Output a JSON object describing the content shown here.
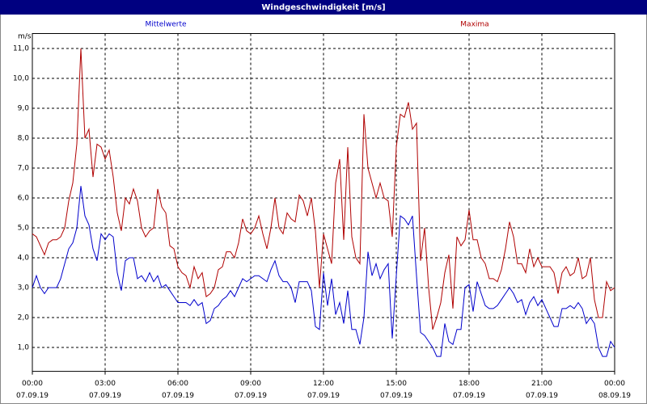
{
  "chart_data": {
    "type": "line",
    "title": "Windgeschwindigkeit [m/s]",
    "y_label": "m/s",
    "x": [
      0,
      10,
      20,
      30,
      40,
      50,
      60,
      70,
      80,
      90,
      100,
      110,
      120,
      130,
      140,
      150,
      160,
      170,
      180,
      190,
      200,
      210,
      220,
      230,
      240,
      250,
      260,
      270,
      280,
      290,
      300,
      310,
      320,
      330,
      340,
      350,
      360,
      370,
      380,
      390,
      400,
      410,
      420,
      430,
      440,
      450,
      460,
      470,
      480,
      490,
      500,
      510,
      520,
      530,
      540,
      550,
      560,
      570,
      580,
      590,
      600,
      610,
      620,
      630,
      640,
      650,
      660,
      670,
      680,
      690,
      700,
      710,
      720,
      730,
      740,
      750,
      760,
      770,
      780,
      790,
      800,
      810,
      820,
      830,
      840,
      850,
      860,
      870,
      880,
      890,
      900,
      910,
      920,
      930,
      940,
      950,
      960,
      970,
      980,
      990,
      1000,
      1010,
      1020,
      1030,
      1040,
      1050,
      1060,
      1070,
      1080,
      1090,
      1100,
      1110,
      1120,
      1130,
      1140,
      1150,
      1160,
      1170,
      1180,
      1190,
      1200,
      1210,
      1220,
      1230,
      1240,
      1250,
      1260,
      1270,
      1280,
      1290,
      1300,
      1310,
      1320,
      1330,
      1340,
      1350,
      1360,
      1370,
      1380,
      1390,
      1400,
      1410,
      1420,
      1430,
      1440
    ],
    "series": [
      {
        "name": "Mittelwerte",
        "color": "#0000cc",
        "values": [
          3.0,
          3.4,
          3.0,
          2.8,
          3.0,
          3.0,
          3.0,
          3.3,
          3.8,
          4.3,
          4.5,
          5.0,
          6.4,
          5.4,
          5.1,
          4.3,
          3.9,
          4.8,
          4.6,
          4.8,
          4.7,
          3.5,
          2.9,
          3.9,
          4.0,
          4.0,
          3.3,
          3.4,
          3.2,
          3.5,
          3.2,
          3.4,
          3.0,
          3.1,
          2.9,
          2.7,
          2.5,
          2.5,
          2.5,
          2.4,
          2.6,
          2.4,
          2.5,
          1.8,
          1.9,
          2.3,
          2.4,
          2.6,
          2.7,
          2.9,
          2.7,
          3.0,
          3.3,
          3.2,
          3.3,
          3.4,
          3.4,
          3.3,
          3.2,
          3.6,
          3.9,
          3.4,
          3.2,
          3.2,
          3.0,
          2.5,
          3.2,
          3.2,
          3.2,
          2.9,
          1.7,
          1.6,
          3.5,
          2.4,
          3.3,
          2.1,
          2.5,
          1.8,
          2.9,
          1.6,
          1.6,
          1.1,
          2.0,
          4.2,
          3.4,
          3.8,
          3.3,
          3.6,
          3.8,
          1.3,
          3.4,
          5.4,
          5.3,
          5.1,
          5.4,
          3.4,
          1.5,
          1.4,
          1.2,
          1.0,
          0.7,
          0.7,
          1.8,
          1.2,
          1.1,
          1.6,
          1.6,
          3.0,
          3.1,
          2.2,
          3.2,
          2.8,
          2.4,
          2.3,
          2.3,
          2.4,
          2.6,
          2.8,
          3.0,
          2.8,
          2.5,
          2.6,
          2.1,
          2.5,
          2.7,
          2.4,
          2.6,
          2.3,
          2.0,
          1.7,
          1.7,
          2.3,
          2.3,
          2.4,
          2.3,
          2.5,
          2.3,
          1.8,
          2.0,
          1.8,
          1.0,
          0.7,
          0.7,
          1.2,
          1.0
        ]
      },
      {
        "name": "Maxima",
        "color": "#b00000",
        "values": [
          4.8,
          4.7,
          4.4,
          4.1,
          4.5,
          4.6,
          4.6,
          4.7,
          5.0,
          5.9,
          6.5,
          7.8,
          11.0,
          8.0,
          8.3,
          6.7,
          7.8,
          7.7,
          7.3,
          7.6,
          6.7,
          5.5,
          4.9,
          6.0,
          5.8,
          6.3,
          5.9,
          5.0,
          4.7,
          4.9,
          5.0,
          6.3,
          5.7,
          5.5,
          4.4,
          4.3,
          3.7,
          3.5,
          3.4,
          3.0,
          3.7,
          3.3,
          3.5,
          2.7,
          2.8,
          3.0,
          3.6,
          3.7,
          4.2,
          4.2,
          4.0,
          4.5,
          5.3,
          4.9,
          4.8,
          5.0,
          5.4,
          4.8,
          4.3,
          5.0,
          6.0,
          5.0,
          4.8,
          5.5,
          5.3,
          5.2,
          6.1,
          5.9,
          5.4,
          6.0,
          4.9,
          3.0,
          4.8,
          4.3,
          3.8,
          6.5,
          7.3,
          4.6,
          7.7,
          4.7,
          4.0,
          3.8,
          8.8,
          7.0,
          6.5,
          6.0,
          6.5,
          6.0,
          5.9,
          4.7,
          7.7,
          8.8,
          8.7,
          9.2,
          8.3,
          8.5,
          3.9,
          5.0,
          3.0,
          1.6,
          2.0,
          2.5,
          3.5,
          4.1,
          2.3,
          4.7,
          4.4,
          4.6,
          5.6,
          4.6,
          4.6,
          4.0,
          3.8,
          3.3,
          3.3,
          3.2,
          3.6,
          4.3,
          5.2,
          4.7,
          3.8,
          3.8,
          3.5,
          4.3,
          3.7,
          4.0,
          3.7,
          3.7,
          3.7,
          3.5,
          2.8,
          3.5,
          3.7,
          3.4,
          3.5,
          4.0,
          3.3,
          3.4,
          4.0,
          2.6,
          2.0,
          2.0,
          3.2,
          2.9,
          3.0
        ]
      }
    ],
    "xlim": [
      0,
      1440
    ],
    "xticks": [
      {
        "value": 0,
        "label": "00:00",
        "date": "07.09.19"
      },
      {
        "value": 180,
        "label": "03:00",
        "date": "07.09.19"
      },
      {
        "value": 360,
        "label": "06:00",
        "date": "07.09.19"
      },
      {
        "value": 540,
        "label": "09:00",
        "date": "07.09.19"
      },
      {
        "value": 720,
        "label": "12:00",
        "date": "07.09.19"
      },
      {
        "value": 900,
        "label": "15:00",
        "date": "07.09.19"
      },
      {
        "value": 1080,
        "label": "18:00",
        "date": "07.09.19"
      },
      {
        "value": 1260,
        "label": "21:00",
        "date": "07.09.19"
      },
      {
        "value": 1440,
        "label": "00:00",
        "date": "08.09.19"
      }
    ],
    "ylim": [
      0.2,
      11.5
    ],
    "yticks": [
      {
        "value": 1,
        "label": "1,0"
      },
      {
        "value": 2,
        "label": "2,0"
      },
      {
        "value": 3,
        "label": "3,0"
      },
      {
        "value": 4,
        "label": "4,0"
      },
      {
        "value": 5,
        "label": "5,0"
      },
      {
        "value": 6,
        "label": "6,0"
      },
      {
        "value": 7,
        "label": "7,0"
      },
      {
        "value": 8,
        "label": "8,0"
      },
      {
        "value": 9,
        "label": "9,0"
      },
      {
        "value": 10,
        "label": "10,0"
      },
      {
        "value": 11,
        "label": "11,0"
      }
    ],
    "grid": true
  }
}
